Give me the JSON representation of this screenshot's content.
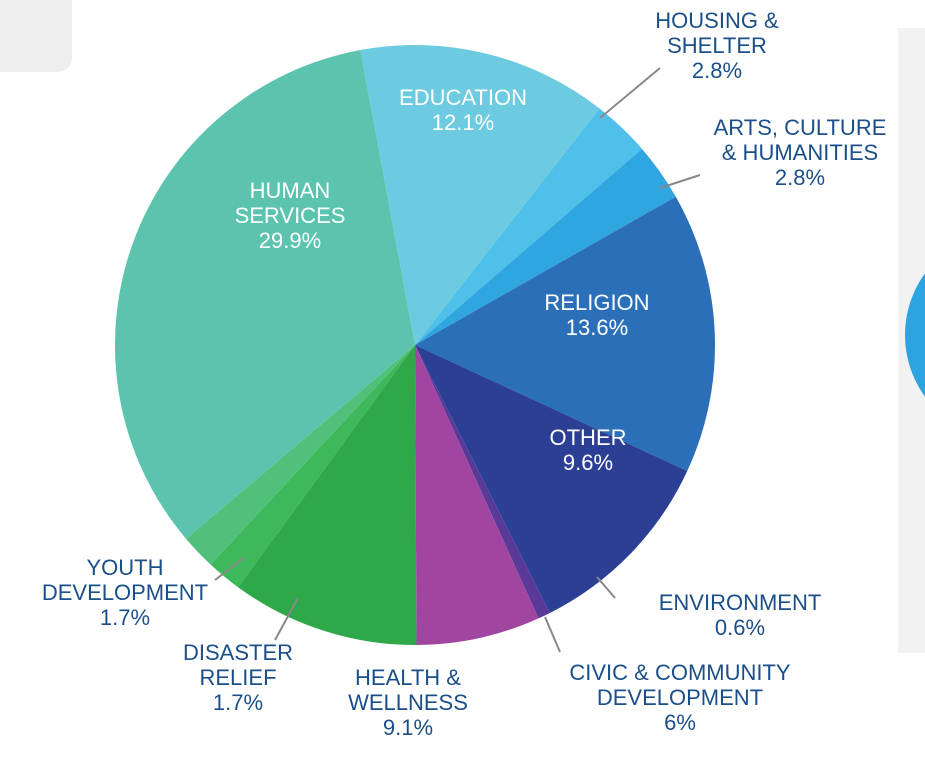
{
  "chart_data": {
    "type": "pie",
    "categories": [
      "EDUCATION",
      "HOUSING & SHELTER",
      "ARTS, CULTURE & HUMANITIES",
      "RELIGION",
      "OTHER",
      "ENVIRONMENT",
      "CIVIC & COMMUNITY DEVELOPMENT",
      "HEALTH & WELLNESS",
      "DISASTER RELIEF",
      "YOUTH DEVELOPMENT",
      "HUMAN SERVICES"
    ],
    "values": [
      12.1,
      2.8,
      2.8,
      13.6,
      9.6,
      0.6,
      6,
      9.1,
      1.7,
      1.7,
      29.9
    ],
    "value_labels": [
      "12.1%",
      "2.8%",
      "2.8%",
      "13.6%",
      "9.6%",
      "0.6%",
      "6%",
      "9.1%",
      "1.7%",
      "1.7%",
      "29.9%"
    ],
    "colors": [
      "#6ccbe0",
      "#4fc0ea",
      "#2fa6e0",
      "#2b6fb8",
      "#2b3f94",
      "#5a3a99",
      "#a046a0",
      "#2fa84a",
      "#3db85a",
      "#50c07a",
      "#5cc4ae"
    ]
  }
}
